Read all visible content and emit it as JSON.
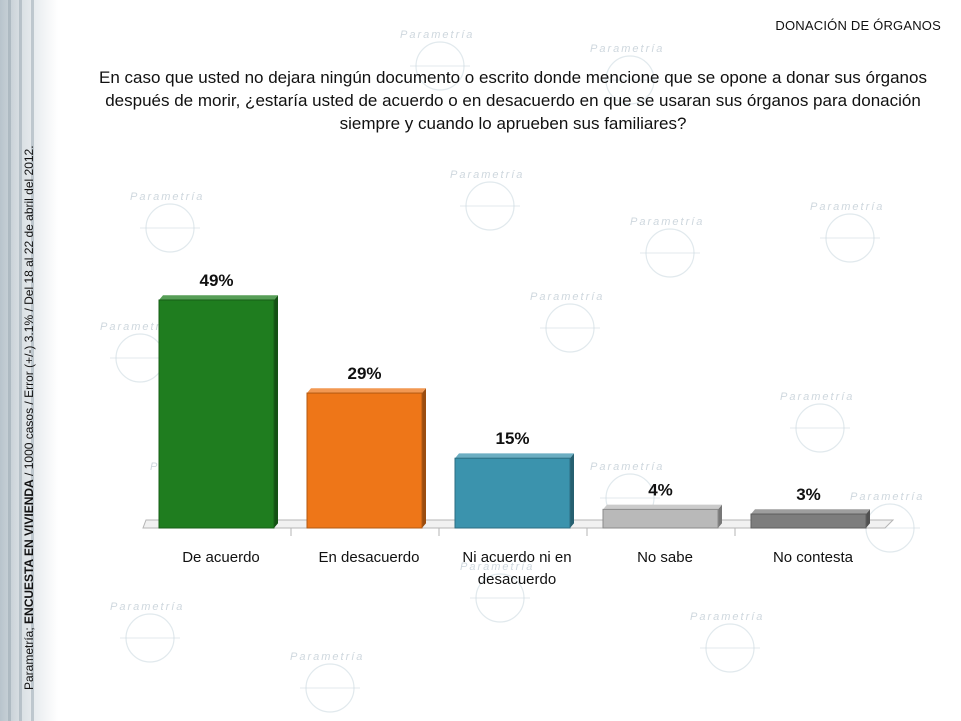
{
  "topic": "DONACIÓN DE ÓRGANOS",
  "question": "En caso que usted no dejara ningún documento o escrito donde mencione que se opone a donar sus órganos después de morir, ¿estaría usted de acuerdo o en desacuerdo en que se usaran sus órganos para donación siempre y cuando lo aprueben sus familiares?",
  "side_note": {
    "prefix": "Parametría; ",
    "bold": "ENCUESTA EN VIVIENDA",
    "suffix": " / 1000 casos / Error (+/-) 3.1% / Del 18 al 22 de abril del 2012."
  },
  "watermark_text": "Parametría",
  "chart_data": {
    "type": "bar",
    "categories": [
      "De acuerdo",
      "En desacuerdo",
      "Ni acuerdo ni en desacuerdo",
      "No sabe",
      "No contesta"
    ],
    "category_lines": [
      [
        "De acuerdo"
      ],
      [
        "En desacuerdo"
      ],
      [
        "Ni acuerdo ni en",
        "desacuerdo"
      ],
      [
        "No sabe"
      ],
      [
        "No contesta"
      ]
    ],
    "values": [
      49,
      29,
      15,
      4,
      3
    ],
    "data_labels": [
      "49%",
      "29%",
      "15%",
      "4%",
      "3%"
    ],
    "colors": [
      "#1f7d1f",
      "#ee7618",
      "#3b93ad",
      "#b9b9b9",
      "#7d7d7d"
    ],
    "ylim": [
      0,
      49
    ],
    "grid": false,
    "legend": false,
    "style": "3d"
  }
}
